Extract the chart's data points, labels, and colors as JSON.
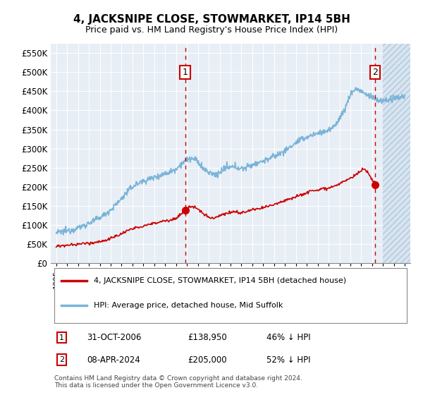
{
  "title": "4, JACKSNIPE CLOSE, STOWMARKET, IP14 5BH",
  "subtitle": "Price paid vs. HM Land Registry's House Price Index (HPI)",
  "ylim": [
    0,
    575000
  ],
  "yticks": [
    0,
    50000,
    100000,
    150000,
    200000,
    250000,
    300000,
    350000,
    400000,
    450000,
    500000,
    550000
  ],
  "ytick_labels": [
    "£0",
    "£50K",
    "£100K",
    "£150K",
    "£200K",
    "£250K",
    "£300K",
    "£350K",
    "£400K",
    "£450K",
    "£500K",
    "£550K"
  ],
  "hpi_color": "#7ab4d8",
  "price_color": "#cc0000",
  "marker_color": "#cc0000",
  "vline_color": "#cc0000",
  "bg_color": "#e8eef5",
  "hatch_bg_color": "#d8e4ef",
  "legend_label_price": "4, JACKSNIPE CLOSE, STOWMARKET, IP14 5BH (detached house)",
  "legend_label_hpi": "HPI: Average price, detached house, Mid Suffolk",
  "annotation1_date": "31-OCT-2006",
  "annotation1_price": "£138,950",
  "annotation1_pct": "46% ↓ HPI",
  "annotation2_date": "08-APR-2024",
  "annotation2_price": "£205,000",
  "annotation2_pct": "52% ↓ HPI",
  "footer": "Contains HM Land Registry data © Crown copyright and database right 2024.\nThis data is licensed under the Open Government Licence v3.0.",
  "sale1_x": 2006.83,
  "sale1_y": 138950,
  "sale2_x": 2024.27,
  "sale2_y": 205000,
  "xlim_left": 1994.5,
  "xlim_right": 2027.5,
  "hatch_start": 2025.0
}
